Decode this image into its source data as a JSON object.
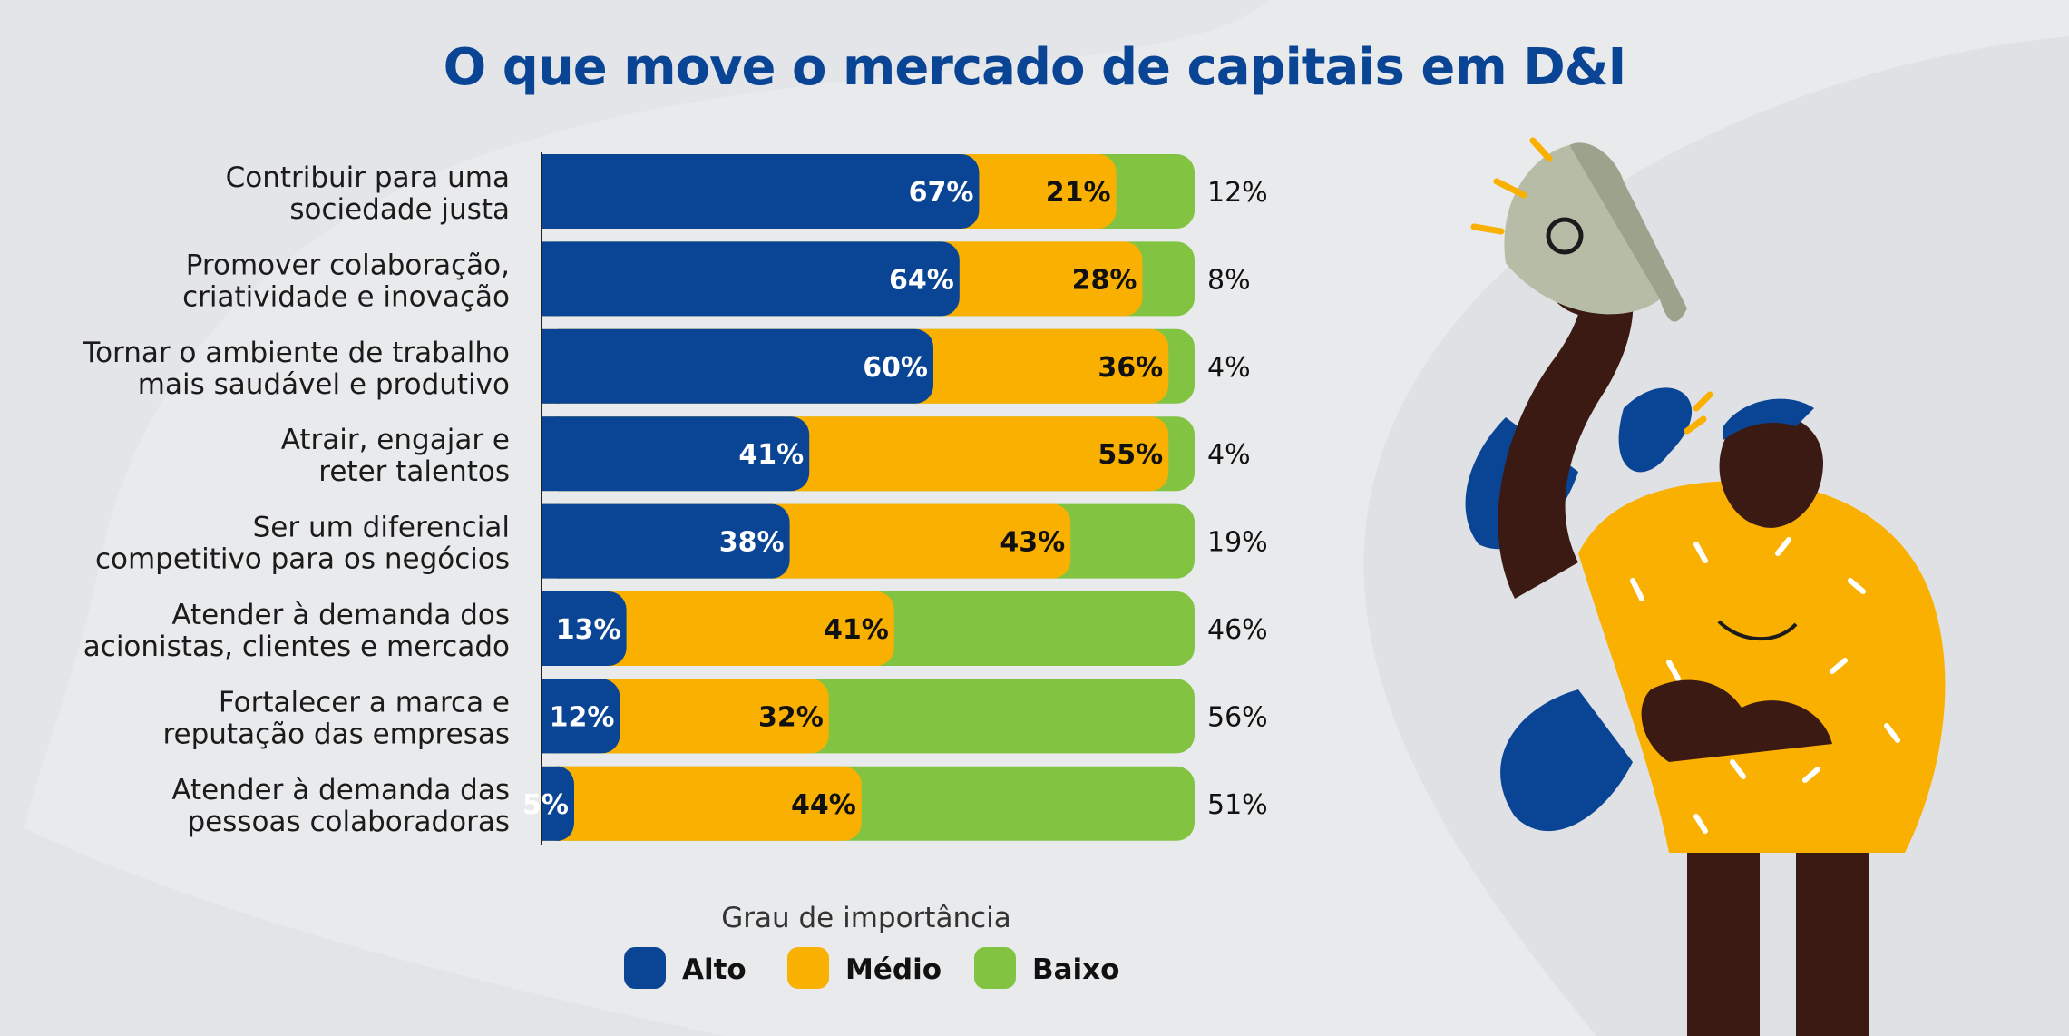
{
  "title": "O que move o mercado de capitais em D&I",
  "colors": {
    "alto": "#0a4595",
    "medio": "#f9b000",
    "baixo": "#82c341",
    "title": "#0a4595"
  },
  "chart_data": {
    "type": "bar",
    "orientation": "horizontal",
    "stacked": true,
    "categories": [
      [
        "Contribuir para uma",
        "sociedade justa"
      ],
      [
        "Promover colaboração,",
        "criatividade e inovação"
      ],
      [
        "Tornar o ambiente de trabalho",
        "mais saudável e produtivo"
      ],
      [
        "Atrair, engajar e",
        "reter talentos"
      ],
      [
        "Ser um diferencial",
        "competitivo para os negócios"
      ],
      [
        "Atender à demanda dos",
        "acionistas, clientes e mercado"
      ],
      [
        "Fortalecer a marca e",
        "reputação das empresas"
      ],
      [
        "Atender à demanda das",
        "pessoas colaboradoras"
      ]
    ],
    "series": [
      {
        "name": "Alto",
        "color": "#0a4595",
        "values": [
          67,
          64,
          60,
          41,
          38,
          13,
          12,
          5
        ]
      },
      {
        "name": "Médio",
        "color": "#f9b000",
        "values": [
          21,
          28,
          36,
          55,
          43,
          41,
          32,
          44
        ]
      },
      {
        "name": "Baixo",
        "color": "#82c341",
        "values": [
          12,
          8,
          4,
          4,
          19,
          46,
          56,
          51
        ]
      }
    ],
    "value_suffix": "%",
    "xlim": [
      0,
      100
    ],
    "legend": {
      "title": "Grau de importância",
      "position": "bottom"
    }
  }
}
